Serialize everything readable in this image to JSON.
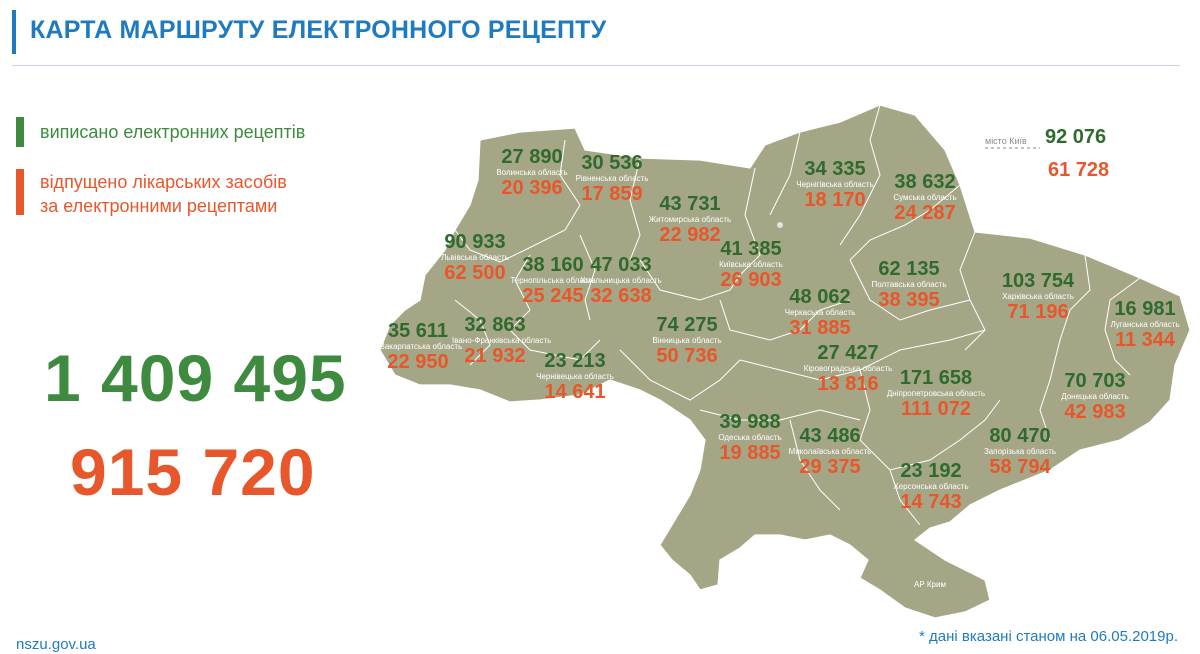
{
  "header": {
    "title": "КАРТА МАРШРУТУ ЕЛЕКТРОННОГО РЕЦЕПТУ"
  },
  "legend": {
    "issued": "виписано електронних рецептів",
    "dispensed_line1": "відпущено лікарських засобів",
    "dispensed_line2": "за електронними рецептами"
  },
  "totals": {
    "issued": "1 409 495",
    "dispensed": "915 720"
  },
  "kyiv_city": {
    "label": "місто Київ",
    "issued": "92 076",
    "dispensed": "61 728"
  },
  "regions": [
    {
      "id": "volyn",
      "issued": "27 890",
      "name": "Волинська область",
      "dispensed": "20 396"
    },
    {
      "id": "rivne",
      "issued": "30 536",
      "name": "Рівненська область",
      "dispensed": "17 859"
    },
    {
      "id": "zhytomyr",
      "issued": "43 731",
      "name": "Житомирська область",
      "dispensed": "22 982"
    },
    {
      "id": "chernihiv",
      "issued": "34 335",
      "name": "Чернігівська область",
      "dispensed": "18 170"
    },
    {
      "id": "sumy",
      "issued": "38 632",
      "name": "Сумська область",
      "dispensed": "24 287"
    },
    {
      "id": "lviv",
      "issued": "90 933",
      "name": "Львівська область",
      "dispensed": "62 500"
    },
    {
      "id": "ternopil",
      "issued": "38 160",
      "name": "Тернопільська область",
      "dispensed": "25 245"
    },
    {
      "id": "khmelnytskyi",
      "issued": "47 033",
      "name": "Хмельницька область",
      "dispensed": "32 638"
    },
    {
      "id": "kyiv-oblast",
      "issued": "41 385",
      "name": "Київська область",
      "dispensed": "26 903"
    },
    {
      "id": "poltava",
      "issued": "62 135",
      "name": "Полтавська область",
      "dispensed": "38 395"
    },
    {
      "id": "kharkiv",
      "issued": "103 754",
      "name": "Харківська область",
      "dispensed": "71 196"
    },
    {
      "id": "luhansk",
      "issued": "16 981",
      "name": "Луганська область",
      "dispensed": "11 344"
    },
    {
      "id": "cherkasy",
      "issued": "48 062",
      "name": "Черкаська область",
      "dispensed": "31 885"
    },
    {
      "id": "zakarpattia",
      "issued": "35 611",
      "name": "Закарпатська область",
      "dispensed": "22 950"
    },
    {
      "id": "ivano-frankivsk",
      "issued": "32 863",
      "name": "Івано-Франківська область",
      "dispensed": "21 932"
    },
    {
      "id": "vinnytsia",
      "issued": "74 275",
      "name": "Вінницька область",
      "dispensed": "50 736"
    },
    {
      "id": "chernivtsi",
      "issued": "23 213",
      "name": "Чернівецька область",
      "dispensed": "14 641"
    },
    {
      "id": "kirovohrad",
      "issued": "27 427",
      "name": "Кіровоградська область",
      "dispensed": "13 816"
    },
    {
      "id": "dnipro",
      "issued": "171 658",
      "name": "Дніпропетровська область",
      "dispensed": "111 072"
    },
    {
      "id": "donetsk",
      "issued": "70 703",
      "name": "Донецька область",
      "dispensed": "42 983"
    },
    {
      "id": "odesa",
      "issued": "39 988",
      "name": "Одеська область",
      "dispensed": "19 885"
    },
    {
      "id": "mykolaiv",
      "issued": "43 486",
      "name": "Миколаївська область",
      "dispensed": "29 375"
    },
    {
      "id": "zaporizhzhia",
      "issued": "80 470",
      "name": "Запорізька область",
      "dispensed": "58 794"
    },
    {
      "id": "kherson",
      "issued": "23 192",
      "name": "Херсонська область",
      "dispensed": "14 743"
    },
    {
      "id": "crimea",
      "issued": "",
      "name": "АР Крим",
      "dispensed": ""
    }
  ],
  "footer": {
    "site": "nszu.gov.ua",
    "note": "* дані вказані станом на 06.05.2019р."
  },
  "colors": {
    "title": "#1f7bc1",
    "issued": "#2f6b2f",
    "dispensed": "#e8572b",
    "map_fill": "#a5a686",
    "map_border": "#ffffff",
    "legend_green": "#3e8a3e"
  }
}
